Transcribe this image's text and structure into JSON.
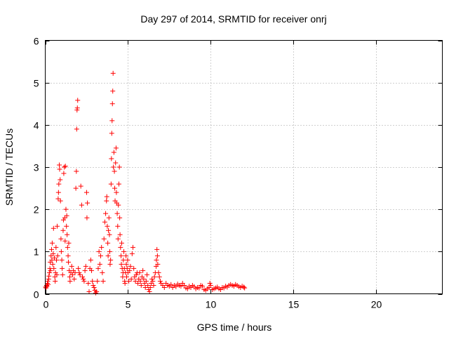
{
  "chart_data": {
    "type": "scatter",
    "title": "Day 297 of 2014, SRMTID for receiver onrj",
    "xlabel": "GPS time / hours",
    "ylabel": "SRMTID / TECUs",
    "xlim": [
      0,
      24
    ],
    "ylim": [
      0,
      6
    ],
    "xticks": [
      0,
      5,
      10,
      15,
      20
    ],
    "yticks": [
      0,
      1,
      2,
      3,
      4,
      5,
      6
    ],
    "grid": true,
    "marker": "+",
    "marker_color": "#ff0000",
    "series": [
      {
        "name": "SRMTID",
        "points": [
          [
            0.02,
            0.16
          ],
          [
            0.05,
            0.14
          ],
          [
            0.08,
            0.2
          ],
          [
            0.1,
            0.18
          ],
          [
            0.13,
            0.25
          ],
          [
            0.15,
            0.3
          ],
          [
            0.18,
            0.22
          ],
          [
            0.2,
            0.35
          ],
          [
            0.22,
            0.42
          ],
          [
            0.25,
            0.5
          ],
          [
            0.28,
            0.6
          ],
          [
            0.3,
            0.75
          ],
          [
            0.32,
            0.55
          ],
          [
            0.35,
            0.9
          ],
          [
            0.38,
            1.05
          ],
          [
            0.4,
            0.8
          ],
          [
            0.42,
            1.2
          ],
          [
            0.45,
            0.7
          ],
          [
            0.48,
            0.95
          ],
          [
            0.5,
            1.55
          ],
          [
            0.52,
            0.6
          ],
          [
            0.55,
            0.85
          ],
          [
            0.58,
            0.4
          ],
          [
            0.6,
            0.3
          ],
          [
            0.62,
            0.5
          ],
          [
            0.65,
            1.1
          ],
          [
            0.68,
            0.8
          ],
          [
            0.7,
            0.45
          ],
          [
            0.72,
            1.6
          ],
          [
            0.75,
            0.9
          ],
          [
            0.78,
            2.25
          ],
          [
            0.8,
            2.4
          ],
          [
            0.82,
            2.6
          ],
          [
            0.85,
            3.05
          ],
          [
            0.87,
            2.95
          ],
          [
            0.9,
            2.7
          ],
          [
            0.92,
            2.2
          ],
          [
            0.95,
            1.3
          ],
          [
            0.97,
            1.0
          ],
          [
            1.0,
            0.8
          ],
          [
            1.02,
            0.6
          ],
          [
            1.05,
            0.45
          ],
          [
            1.08,
            1.5
          ],
          [
            1.1,
            1.75
          ],
          [
            1.12,
            2.85
          ],
          [
            1.15,
            3.0
          ],
          [
            1.18,
            1.8
          ],
          [
            1.2,
            1.25
          ],
          [
            1.22,
            3.02
          ],
          [
            1.25,
            2.0
          ],
          [
            1.28,
            1.6
          ],
          [
            1.3,
            1.85
          ],
          [
            1.32,
            1.4
          ],
          [
            1.35,
            1.1
          ],
          [
            1.38,
            0.9
          ],
          [
            1.4,
            0.75
          ],
          [
            1.42,
            1.2
          ],
          [
            1.45,
            0.55
          ],
          [
            1.48,
            0.4
          ],
          [
            1.5,
            0.3
          ],
          [
            1.55,
            0.5
          ],
          [
            1.6,
            0.65
          ],
          [
            1.65,
            0.45
          ],
          [
            1.7,
            0.55
          ],
          [
            1.75,
            0.35
          ],
          [
            1.8,
            0.5
          ],
          [
            1.85,
            2.5
          ],
          [
            1.88,
            2.9
          ],
          [
            1.9,
            3.9
          ],
          [
            1.92,
            4.35
          ],
          [
            1.94,
            4.4
          ],
          [
            1.96,
            4.58
          ],
          [
            2.0,
            0.6
          ],
          [
            2.05,
            0.5
          ],
          [
            2.1,
            0.45
          ],
          [
            2.15,
            2.55
          ],
          [
            2.2,
            2.1
          ],
          [
            2.25,
            0.4
          ],
          [
            2.3,
            0.35
          ],
          [
            2.35,
            0.3
          ],
          [
            2.4,
            0.55
          ],
          [
            2.45,
            0.65
          ],
          [
            2.5,
            2.4
          ],
          [
            2.52,
            1.8
          ],
          [
            2.55,
            2.15
          ],
          [
            2.6,
            0.25
          ],
          [
            2.65,
            0.05
          ],
          [
            2.7,
            0.6
          ],
          [
            2.75,
            0.8
          ],
          [
            2.8,
            0.55
          ],
          [
            2.85,
            0.3
          ],
          [
            2.9,
            0.2
          ],
          [
            2.95,
            0.15
          ],
          [
            3.0,
            0.08
          ],
          [
            3.05,
            0.02
          ],
          [
            3.1,
            0.05
          ],
          [
            3.15,
            0.3
          ],
          [
            3.2,
            0.6
          ],
          [
            3.25,
            1.0
          ],
          [
            3.3,
            0.7
          ],
          [
            3.35,
            0.9
          ],
          [
            3.4,
            1.1
          ],
          [
            3.45,
            0.5
          ],
          [
            3.5,
            0.3
          ],
          [
            3.55,
            1.3
          ],
          [
            3.6,
            1.7
          ],
          [
            3.65,
            1.9
          ],
          [
            3.7,
            2.2
          ],
          [
            3.72,
            2.3
          ],
          [
            3.75,
            1.6
          ],
          [
            3.78,
            1.2
          ],
          [
            3.8,
            0.9
          ],
          [
            3.82,
            1.5
          ],
          [
            3.85,
            1.8
          ],
          [
            3.88,
            1.4
          ],
          [
            3.9,
            1.0
          ],
          [
            3.92,
            0.7
          ],
          [
            3.95,
            0.8
          ],
          [
            3.98,
            2.6
          ],
          [
            4.0,
            3.2
          ],
          [
            4.02,
            3.8
          ],
          [
            4.04,
            4.1
          ],
          [
            4.06,
            4.5
          ],
          [
            4.08,
            4.8
          ],
          [
            4.1,
            5.22
          ],
          [
            4.12,
            3.0
          ],
          [
            4.15,
            3.35
          ],
          [
            4.18,
            2.9
          ],
          [
            4.2,
            2.5
          ],
          [
            4.22,
            2.2
          ],
          [
            4.25,
            3.1
          ],
          [
            4.28,
            3.45
          ],
          [
            4.3,
            2.4
          ],
          [
            4.32,
            2.15
          ],
          [
            4.35,
            1.9
          ],
          [
            4.38,
            1.6
          ],
          [
            4.4,
            1.3
          ],
          [
            4.42,
            2.1
          ],
          [
            4.45,
            2.6
          ],
          [
            4.48,
            3.0
          ],
          [
            4.5,
            1.8
          ],
          [
            4.52,
            1.4
          ],
          [
            4.55,
            1.1
          ],
          [
            4.58,
            0.9
          ],
          [
            4.6,
            0.7
          ],
          [
            4.62,
            1.2
          ],
          [
            4.65,
            0.6
          ],
          [
            4.68,
            0.4
          ],
          [
            4.7,
            0.5
          ],
          [
            4.72,
            0.8
          ],
          [
            4.75,
            1.0
          ],
          [
            4.78,
            0.6
          ],
          [
            4.8,
            0.3
          ],
          [
            4.82,
            0.25
          ],
          [
            4.85,
            0.5
          ],
          [
            4.88,
            0.9
          ],
          [
            4.9,
            0.7
          ],
          [
            4.92,
            0.4
          ],
          [
            4.95,
            0.6
          ],
          [
            4.98,
            0.8
          ],
          [
            5.0,
            0.5
          ],
          [
            5.05,
            0.3
          ],
          [
            5.1,
            0.55
          ],
          [
            5.15,
            0.65
          ],
          [
            5.2,
            0.35
          ],
          [
            5.25,
            0.95
          ],
          [
            5.3,
            1.1
          ],
          [
            5.35,
            0.6
          ],
          [
            5.4,
            0.4
          ],
          [
            5.45,
            0.3
          ],
          [
            5.5,
            0.45
          ],
          [
            5.55,
            0.5
          ],
          [
            5.6,
            0.25
          ],
          [
            5.65,
            0.35
          ],
          [
            5.7,
            0.5
          ],
          [
            5.75,
            0.3
          ],
          [
            5.8,
            0.2
          ],
          [
            5.85,
            0.4
          ],
          [
            5.9,
            0.55
          ],
          [
            5.95,
            0.35
          ],
          [
            6.0,
            0.25
          ],
          [
            6.05,
            0.15
          ],
          [
            6.1,
            0.3
          ],
          [
            6.15,
            0.45
          ],
          [
            6.2,
            0.2
          ],
          [
            6.25,
            0.1
          ],
          [
            6.3,
            0.05
          ],
          [
            6.35,
            0.15
          ],
          [
            6.4,
            0.25
          ],
          [
            6.45,
            0.35
          ],
          [
            6.5,
            0.3
          ],
          [
            6.55,
            0.2
          ],
          [
            6.6,
            0.4
          ],
          [
            6.65,
            0.5
          ],
          [
            6.7,
            0.65
          ],
          [
            6.72,
            0.8
          ],
          [
            6.75,
            1.05
          ],
          [
            6.78,
            0.9
          ],
          [
            6.8,
            0.7
          ],
          [
            6.85,
            0.5
          ],
          [
            6.9,
            0.4
          ],
          [
            6.95,
            0.3
          ],
          [
            7.0,
            0.25
          ],
          [
            7.1,
            0.2
          ],
          [
            7.2,
            0.15
          ],
          [
            7.3,
            0.25
          ],
          [
            7.4,
            0.2
          ],
          [
            7.5,
            0.18
          ],
          [
            7.6,
            0.22
          ],
          [
            7.7,
            0.15
          ],
          [
            7.8,
            0.2
          ],
          [
            7.9,
            0.17
          ],
          [
            8.0,
            0.23
          ],
          [
            8.1,
            0.2
          ],
          [
            8.2,
            0.18
          ],
          [
            8.3,
            0.25
          ],
          [
            8.4,
            0.2
          ],
          [
            8.5,
            0.14
          ],
          [
            8.6,
            0.12
          ],
          [
            8.7,
            0.18
          ],
          [
            8.8,
            0.15
          ],
          [
            8.9,
            0.2
          ],
          [
            9.0,
            0.17
          ],
          [
            9.1,
            0.12
          ],
          [
            9.2,
            0.15
          ],
          [
            9.3,
            0.14
          ],
          [
            9.4,
            0.2
          ],
          [
            9.5,
            0.18
          ],
          [
            9.6,
            0.1
          ],
          [
            9.7,
            0.08
          ],
          [
            9.8,
            0.12
          ],
          [
            9.9,
            0.15
          ],
          [
            9.95,
            0.25
          ],
          [
            10.0,
            0.2
          ],
          [
            10.1,
            0.1
          ],
          [
            10.2,
            0.12
          ],
          [
            10.3,
            0.14
          ],
          [
            10.4,
            0.16
          ],
          [
            10.5,
            0.12
          ],
          [
            10.6,
            0.1
          ],
          [
            10.7,
            0.15
          ],
          [
            10.8,
            0.14
          ],
          [
            10.9,
            0.18
          ],
          [
            11.0,
            0.16
          ],
          [
            11.1,
            0.2
          ],
          [
            11.2,
            0.22
          ],
          [
            11.3,
            0.2
          ],
          [
            11.4,
            0.18
          ],
          [
            11.5,
            0.22
          ],
          [
            11.6,
            0.2
          ],
          [
            11.7,
            0.17
          ],
          [
            11.8,
            0.15
          ],
          [
            11.9,
            0.18
          ],
          [
            12.0,
            0.16
          ],
          [
            12.05,
            0.14
          ]
        ]
      }
    ]
  }
}
